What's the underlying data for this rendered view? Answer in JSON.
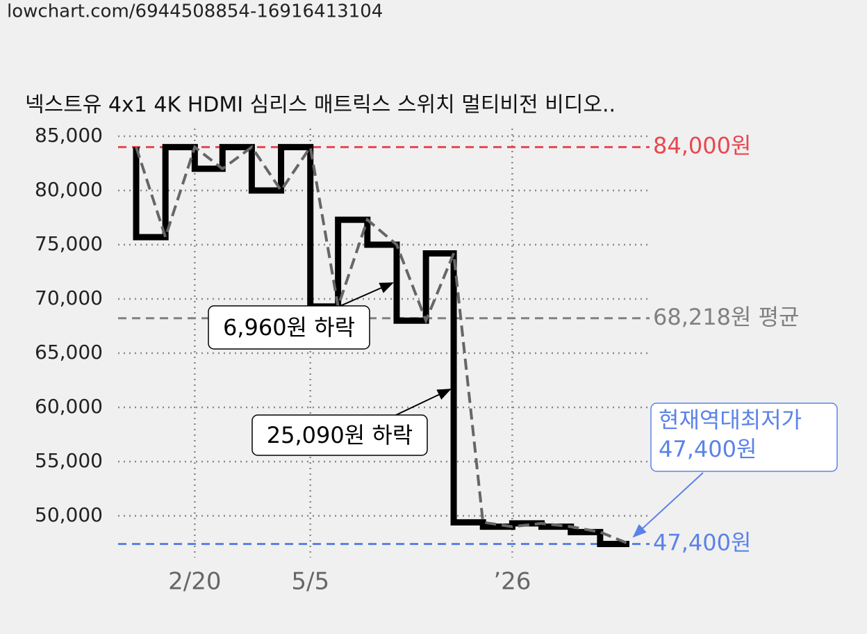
{
  "url": "lowchart.com/6944508854-16916413104",
  "chart_data": {
    "type": "step-line",
    "title": "넥스트유 4x1 4K HDMI 심리스 매트릭스 스위치 멀티비전 비디오..",
    "x": [
      0,
      19,
      38,
      56,
      75,
      94,
      113,
      131,
      150,
      169,
      188,
      206,
      225,
      244,
      263,
      282,
      301,
      320
    ],
    "series": [
      {
        "color": "#000000",
        "trend_color": "#666666",
        "values": [
          84000,
          75700,
          84000,
          82000,
          84000,
          80000,
          84000,
          69300,
          77300,
          75000,
          68000,
          74200,
          49400,
          49000,
          49300,
          49000,
          48500,
          47400
        ]
      }
    ],
    "xlim": [
      0,
      320
    ],
    "xticks": [
      {
        "value": 38,
        "label": "2/20"
      },
      {
        "value": 113,
        "label": "5/5"
      },
      {
        "value": 244,
        "label": "’26"
      }
    ],
    "ylim": [
      45000,
      86500
    ],
    "yticks": [
      {
        "value": 50000,
        "label": "50,000"
      },
      {
        "value": 55000,
        "label": "55,000"
      },
      {
        "value": 60000,
        "label": "60,000"
      },
      {
        "value": 65000,
        "label": "65,000"
      },
      {
        "value": 70000,
        "label": "70,000"
      },
      {
        "value": 75000,
        "label": "75,000"
      },
      {
        "value": 80000,
        "label": "80,000"
      },
      {
        "value": 85000,
        "label": "85,000"
      }
    ],
    "grid": true,
    "reference_lines": [
      {
        "value": 84000,
        "label": "84,000원",
        "color": "#e8474f"
      },
      {
        "value": 68218,
        "label": "68,218원 평균",
        "color": "#808080"
      },
      {
        "value": 47400,
        "label": "47,400원",
        "color": "#5b82e8"
      }
    ],
    "annotations": [
      "6,960원 하락",
      "25,090원 하락"
    ],
    "callout": {
      "lines": [
        "현재역대최저가",
        "47,400원"
      ],
      "color": "#5b82e8"
    }
  }
}
